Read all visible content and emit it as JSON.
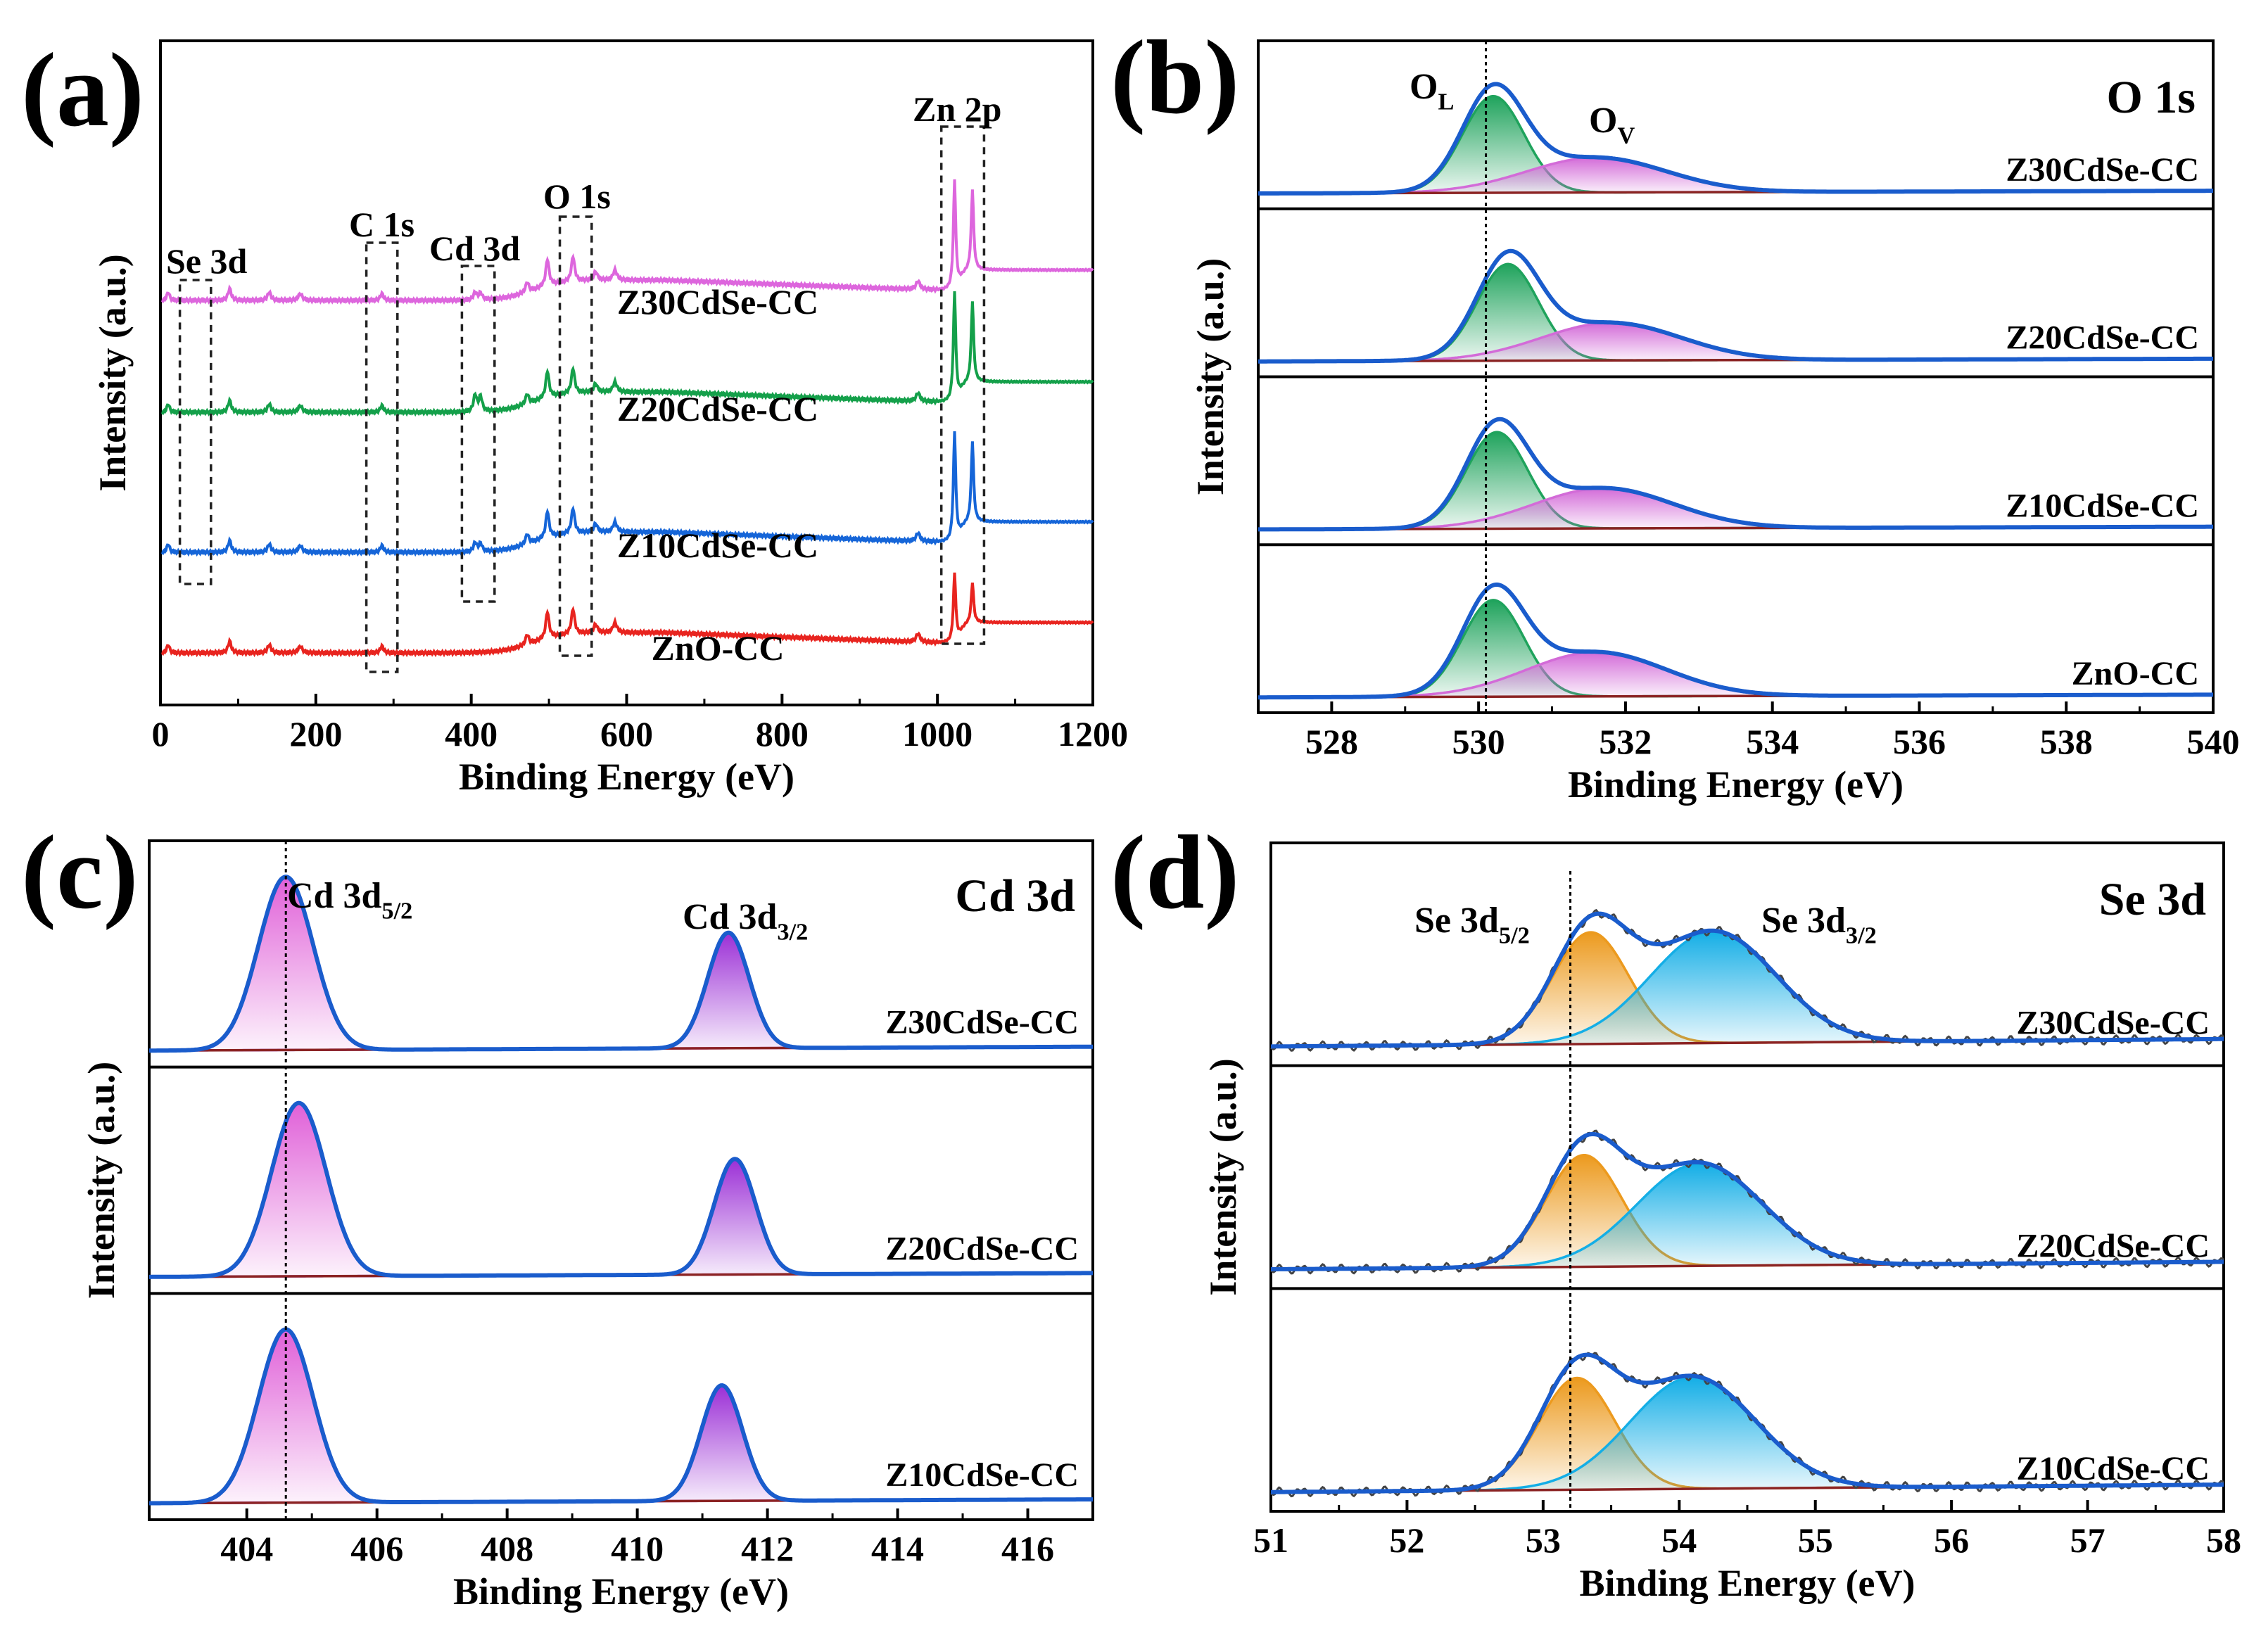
{
  "panels": [
    {
      "id": "a",
      "panel_label": "(a)",
      "chart_data": {
        "type": "line",
        "title": "",
        "xlabel": "Binding Energy (eV)",
        "ylabel": "Intensity (a.u.)",
        "xlim": [
          0,
          1200
        ],
        "xticks": [
          "0",
          "200",
          "400",
          "600",
          "800",
          "1000",
          "1200"
        ],
        "series": [
          {
            "name": "ZnO-CC",
            "color": "#e8241f"
          },
          {
            "name": "Z10CdSe-CC",
            "color": "#1565d8"
          },
          {
            "name": "Z20CdSe-CC",
            "color": "#14a04a"
          },
          {
            "name": "Z30CdSe-CC",
            "color": "#dd66dd"
          }
        ],
        "annotations": [
          "Se 3d",
          "C 1s",
          "Cd 3d",
          "O 1s",
          "Zn 2p"
        ],
        "regions": [
          {
            "label": "Se 3d",
            "x": [
              25,
              65
            ]
          },
          {
            "label": "C 1s",
            "x": [
              265,
              305
            ]
          },
          {
            "label": "Cd 3d",
            "x": [
              388,
              430
            ]
          },
          {
            "label": "O 1s",
            "x": [
              514,
              555
            ]
          },
          {
            "label": "Zn 2p",
            "x": [
              1005,
              1060
            ]
          }
        ]
      }
    },
    {
      "id": "b",
      "panel_label": "(b)",
      "chart_data": {
        "type": "line",
        "title": "O 1s",
        "xlabel": "Binding Energy (eV)",
        "ylabel": "Intensity (a.u.)",
        "xlim": [
          527,
          540
        ],
        "xticks": [
          "528",
          "530",
          "532",
          "534",
          "536",
          "538",
          "540"
        ],
        "reference_line_x": 530.1,
        "subpanels": [
          "Z30CdSe-CC",
          "Z20CdSe-CC",
          "Z10CdSe-CC",
          "ZnO-CC"
        ],
        "components": [
          {
            "name": "O_L",
            "label": "O",
            "sub": "L",
            "color": "#1fa35c",
            "centers": [
              530.2,
              530.4,
              530.25,
              530.2
            ]
          },
          {
            "name": "O_V",
            "label": "O",
            "sub": "V",
            "color": "#d36bd8",
            "centers": [
              531.6,
              531.8,
              531.7,
              531.6
            ]
          }
        ]
      }
    },
    {
      "id": "c",
      "panel_label": "(c)",
      "chart_data": {
        "type": "line",
        "title": "Cd 3d",
        "xlabel": "Binding Energy (eV)",
        "ylabel": "Intensity (a.u.)",
        "xlim": [
          402.5,
          417
        ],
        "xticks": [
          "404",
          "406",
          "408",
          "410",
          "412",
          "414",
          "416"
        ],
        "reference_line_x": 404.6,
        "subpanels": [
          "Z30CdSe-CC",
          "Z20CdSe-CC",
          "Z10CdSe-CC"
        ],
        "components": [
          {
            "name": "Cd 3d5/2",
            "label": "Cd 3d",
            "sub": "5/2",
            "color": "#e060d8",
            "centers": [
              404.6,
              404.8,
              404.6
            ]
          },
          {
            "name": "Cd 3d3/2",
            "label": "Cd 3d",
            "sub": "3/2",
            "color": "#9b2fd6",
            "centers": [
              411.4,
              411.5,
              411.3
            ]
          }
        ]
      }
    },
    {
      "id": "d",
      "panel_label": "(d)",
      "chart_data": {
        "type": "line",
        "title": "Se 3d",
        "xlabel": "Binding Energy (eV)",
        "ylabel": "Intensity (a.u.)",
        "xlim": [
          51,
          58
        ],
        "xticks": [
          "51",
          "52",
          "53",
          "54",
          "55",
          "56",
          "57",
          "58"
        ],
        "reference_line_x": 53.2,
        "subpanels": [
          "Z30CdSe-CC",
          "Z20CdSe-CC",
          "Z10CdSe-CC"
        ],
        "components": [
          {
            "name": "Se 3d5/2",
            "label": "Se 3d",
            "sub": "5/2",
            "color": "#ec9a1e",
            "centers": [
              53.35,
              53.3,
              53.25
            ]
          },
          {
            "name": "Se 3d3/2",
            "label": "Se 3d",
            "sub": "3/2",
            "color": "#14aee6",
            "centers": [
              54.25,
              54.15,
              54.1
            ]
          }
        ]
      }
    }
  ],
  "colors": {
    "envelope": "#1a5ccc",
    "baseline": "#8b2323",
    "axis": "#000000"
  }
}
